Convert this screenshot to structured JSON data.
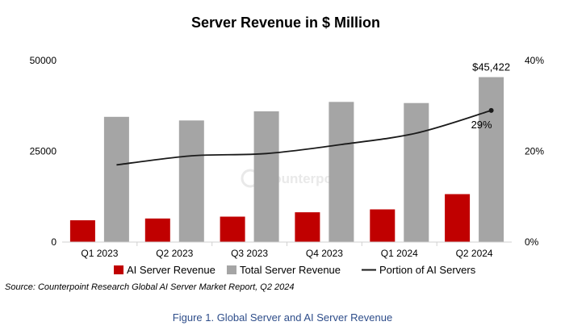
{
  "chart_data": {
    "type": "bar",
    "title": "Server Revenue in $ Million",
    "categories": [
      "Q1 2023",
      "Q2 2023",
      "Q3 2023",
      "Q4 2023",
      "Q1 2024",
      "Q2 2024"
    ],
    "series": [
      {
        "name": "AI Server Revenue",
        "type": "bar",
        "axis": "left",
        "color": "#c00000",
        "values": [
          6000,
          6500,
          7000,
          8200,
          9000,
          13200
        ]
      },
      {
        "name": "Total Server Revenue",
        "type": "bar",
        "axis": "left",
        "color": "#a5a5a5",
        "values": [
          34500,
          33500,
          36000,
          38600,
          38300,
          45422
        ]
      },
      {
        "name": "Portion of AI Servers",
        "type": "line",
        "axis": "right",
        "color": "#1a1a1a",
        "values": [
          17,
          19,
          19.5,
          21.5,
          24,
          29
        ]
      }
    ],
    "y_left": {
      "ylim": [
        0,
        50000
      ],
      "ticks": [
        "0",
        "25000",
        "50000"
      ]
    },
    "y_right": {
      "ylim": [
        0,
        40
      ],
      "ticks": [
        "0%",
        "20%",
        "40%"
      ]
    },
    "annotations": [
      {
        "text": "$45,422",
        "category": "Q2 2024",
        "series": "Total Server Revenue"
      },
      {
        "text": "29%",
        "category": "Q2 2024",
        "series": "Portion of AI Servers"
      }
    ],
    "legend_position": "bottom",
    "grid": false
  },
  "watermark": "Counterpoint",
  "source": "Source: Counterpoint Research Global AI Server Market Report, Q2 2024",
  "caption": "Figure 1. Global Server and AI Server Revenue"
}
